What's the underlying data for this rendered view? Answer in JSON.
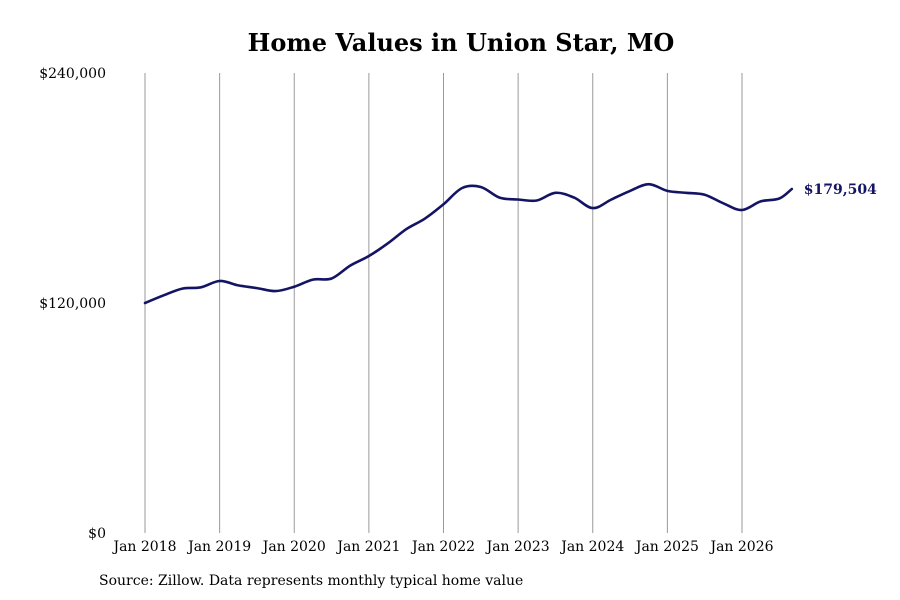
{
  "chart_data": {
    "type": "line",
    "title": "Home Values in Union Star, MO",
    "y_tick_labels": [
      "$240,000",
      "$120,000",
      "$0"
    ],
    "y_tick_values": [
      240000,
      120000,
      0
    ],
    "ylim": [
      0,
      240000
    ],
    "x_tick_labels": [
      "Jan 2018",
      "Jan 2019",
      "Jan 2020",
      "Jan 2021",
      "Jan 2022",
      "Jan 2023",
      "Jan 2024",
      "Jan 2025",
      "Jan 2026"
    ],
    "x_tick_values": [
      "2018-01",
      "2019-01",
      "2020-01",
      "2021-01",
      "2022-01",
      "2023-01",
      "2024-01",
      "2025-01",
      "2026-01"
    ],
    "grid": "vertical",
    "series": [
      {
        "color": "#141464",
        "points": [
          [
            "2018-01",
            120000
          ],
          [
            "2018-04",
            124000
          ],
          [
            "2018-07",
            127500
          ],
          [
            "2018-10",
            128200
          ],
          [
            "2019-01",
            131500
          ],
          [
            "2019-04",
            129200
          ],
          [
            "2019-07",
            127800
          ],
          [
            "2019-10",
            126200
          ],
          [
            "2020-01",
            128500
          ],
          [
            "2020-04",
            132200
          ],
          [
            "2020-07",
            132800
          ],
          [
            "2020-10",
            139500
          ],
          [
            "2021-01",
            144500
          ],
          [
            "2021-04",
            151000
          ],
          [
            "2021-07",
            158500
          ],
          [
            "2021-10",
            164000
          ],
          [
            "2022-01",
            171500
          ],
          [
            "2022-04",
            180000
          ],
          [
            "2022-07",
            180500
          ],
          [
            "2022-10",
            175000
          ],
          [
            "2023-01",
            174000
          ],
          [
            "2023-04",
            173500
          ],
          [
            "2023-07",
            177500
          ],
          [
            "2023-10",
            175000
          ],
          [
            "2024-01",
            169500
          ],
          [
            "2024-04",
            174000
          ],
          [
            "2024-07",
            178500
          ],
          [
            "2024-10",
            182000
          ],
          [
            "2025-01",
            178500
          ],
          [
            "2025-04",
            177500
          ],
          [
            "2025-07",
            176500
          ],
          [
            "2025-10",
            172000
          ],
          [
            "2026-01",
            168500
          ],
          [
            "2026-04",
            173000
          ],
          [
            "2026-07",
            174500
          ],
          [
            "2026-09",
            179504
          ]
        ]
      }
    ],
    "end_label": "$179,504"
  },
  "source_note": "Source: Zillow. Data represents monthly typical home value"
}
